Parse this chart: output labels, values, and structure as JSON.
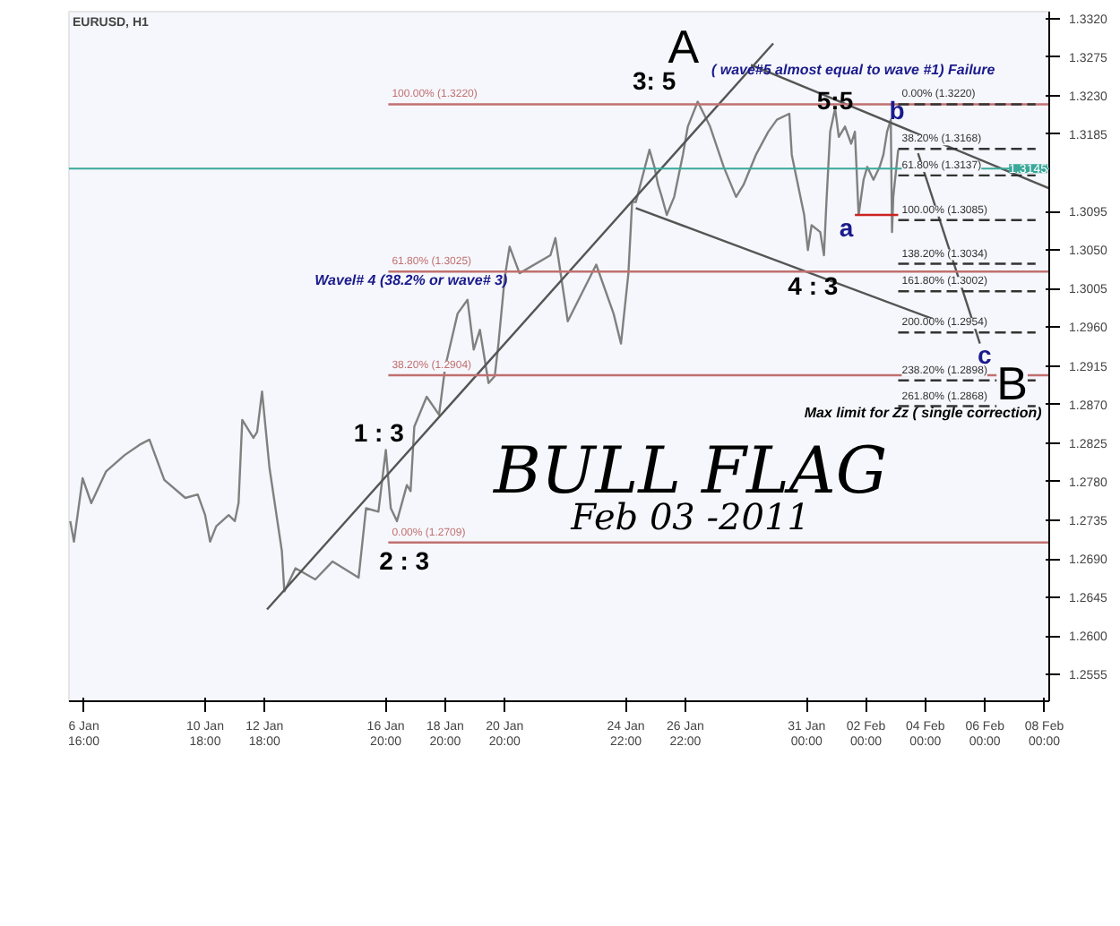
{
  "chart_data": {
    "type": "line",
    "title": "EURUSD, H1",
    "xlim": [
      "2011-01-06T04:00",
      "2011-02-08T04:00"
    ],
    "ylim": [
      1.2524,
      1.3328
    ],
    "xticks": [
      {
        "value": "2011-01-06T16:00",
        "label": "6 Jan 16:00"
      },
      {
        "value": "2011-01-10T18:00",
        "label": "10 Jan 18:00"
      },
      {
        "value": "2011-01-12T18:00",
        "label": "12 Jan 18:00"
      },
      {
        "value": "2011-01-16T20:00",
        "label": "16 Jan 20:00"
      },
      {
        "value": "2011-01-18T20:00",
        "label": "18 Jan 20:00"
      },
      {
        "value": "2011-01-20T20:00",
        "label": "20 Jan 20:00"
      },
      {
        "value": "2011-01-24T22:00",
        "label": "24 Jan 22:00"
      },
      {
        "value": "2011-01-26T22:00",
        "label": "26 Jan 22:00"
      },
      {
        "value": "2011-01-31T00:00",
        "label": "31 Jan 00:00"
      },
      {
        "value": "2011-02-02T00:00",
        "label": "02 Feb 00:00"
      },
      {
        "value": "2011-02-04T00:00",
        "label": "04 Feb 00:00"
      },
      {
        "value": "2011-02-06T00:00",
        "label": "06 Feb 00:00"
      },
      {
        "value": "2011-02-08T00:00",
        "label": "08 Feb 00:00"
      }
    ],
    "yticks": [
      {
        "value": 1.332,
        "label": "1.3320"
      },
      1.3275,
      {
        "value": 1.323,
        "label": "1.3230"
      },
      1.3185,
      1.3095,
      {
        "value": 1.305,
        "label": "1.3050"
      },
      1.3005,
      {
        "value": 1.296,
        "label": "1.2960"
      },
      1.2915,
      {
        "value": 1.287,
        "label": "1.2870"
      },
      1.2825,
      {
        "value": 1.278,
        "label": "1.2780"
      },
      1.2735,
      {
        "value": 1.269,
        "label": "1.2690"
      },
      1.2645,
      {
        "value": 1.26,
        "label": "1.2600"
      },
      1.2555
    ],
    "grid": false,
    "ref_lines": [
      {
        "axis": "y",
        "value": 1.3145,
        "label": "1.3145",
        "color": "#3aa89a"
      }
    ],
    "series": [
      {
        "color": "#808080",
        "x": [
          "2011-01-06T05:00",
          "2011-01-06T08:00",
          "2011-01-06T15:00",
          "2011-01-06T22:00",
          "2011-01-07T10:00",
          "2011-01-08T01:00",
          "2011-01-08T13:00",
          "2011-01-08T21:00",
          "2011-01-09T09:00",
          "2011-01-10T02:00",
          "2011-01-10T12:00",
          "2011-01-10T18:00",
          "2011-01-10T22:00",
          "2011-01-11T03:00",
          "2011-01-11T13:00",
          "2011-01-11T18:00",
          "2011-01-11T21:00",
          "2011-01-12T00:00",
          "2011-01-12T09:00",
          "2011-01-12T12:00",
          "2011-01-12T16:00",
          "2011-01-12T22:00",
          "2011-01-13T08:00",
          "2011-01-13T10:00",
          "2011-01-13T19:00",
          "2011-01-14T11:00",
          "2011-01-15T01:00",
          "2011-01-15T22:00",
          "2011-01-16T04:00",
          "2011-01-16T14:00",
          "2011-01-16T20:00",
          "2011-01-17T00:00",
          "2011-01-17T05:00",
          "2011-01-17T13:00",
          "2011-01-17T16:00",
          "2011-01-17T19:00",
          "2011-01-18T05:00",
          "2011-01-18T15:00",
          "2011-01-18T20:00",
          "2011-01-19T06:00",
          "2011-01-19T14:00",
          "2011-01-19T19:00",
          "2011-01-20T00:00",
          "2011-01-20T07:00",
          "2011-01-20T12:00",
          "2011-01-20T15:00",
          "2011-01-20T20:00",
          "2011-01-21T00:00",
          "2011-01-21T08:00",
          "2011-01-22T09:00",
          "2011-01-22T13:00",
          "2011-01-22T23:00",
          "2011-01-23T22:00",
          "2011-01-24T12:00",
          "2011-01-24T18:00",
          "2011-01-25T00:00",
          "2011-01-25T03:00",
          "2011-01-25T06:00",
          "2011-01-25T17:00",
          "2011-01-25T21:00",
          "2011-01-26T00:00",
          "2011-01-26T03:00",
          "2011-01-26T07:00",
          "2011-01-26T13:00",
          "2011-01-26T20:00",
          "2011-01-27T00:00",
          "2011-01-27T08:00",
          "2011-01-27T18:00",
          "2011-01-28T05:00",
          "2011-01-28T15:00",
          "2011-01-28T21:00",
          "2011-01-29T07:00",
          "2011-01-29T17:00",
          "2011-01-30T00:00",
          "2011-01-30T10:00",
          "2011-01-30T12:00",
          "2011-01-30T22:00",
          "2011-01-31T01:00",
          "2011-01-31T04:00",
          "2011-01-31T11:00",
          "2011-01-31T14:00",
          "2011-01-31T16:00",
          "2011-01-31T19:00",
          "2011-01-31T23:00",
          "2011-02-01T02:00",
          "2011-02-01T07:00",
          "2011-02-01T12:00",
          "2011-02-01T15:00",
          "2011-02-01T18:00",
          "2011-02-01T22:00",
          "2011-02-02T01:00",
          "2011-02-02T06:00",
          "2011-02-02T11:00",
          "2011-02-02T14:00",
          "2011-02-02T17:00",
          "2011-02-02T20:00",
          "2011-02-02T21:00",
          "2011-02-02T22:00",
          "2011-02-03T02:00"
        ],
        "values": [
          1.2734,
          1.271,
          1.2784,
          1.2755,
          1.2792,
          1.2811,
          1.2823,
          1.2829,
          1.2782,
          1.2761,
          1.2765,
          1.2741,
          1.271,
          1.2728,
          1.2741,
          1.2734,
          1.2755,
          1.2852,
          1.2831,
          1.2838,
          1.2885,
          1.2796,
          1.2699,
          1.2652,
          1.2679,
          1.2666,
          1.2687,
          1.2668,
          1.2749,
          1.2745,
          1.2817,
          1.2749,
          1.2734,
          1.2776,
          1.2769,
          1.2844,
          1.2879,
          1.2858,
          1.2914,
          1.2976,
          1.2992,
          1.2934,
          1.2957,
          1.2895,
          1.2903,
          1.2941,
          1.3017,
          1.3054,
          1.3023,
          1.3044,
          1.3064,
          1.2967,
          1.3033,
          1.2976,
          1.2941,
          1.3023,
          1.3106,
          1.3106,
          1.3167,
          1.3147,
          1.3126,
          1.3112,
          1.3091,
          1.3112,
          1.3161,
          1.3194,
          1.3223,
          1.3194,
          1.3147,
          1.3112,
          1.3126,
          1.3161,
          1.3188,
          1.3202,
          1.3209,
          1.3161,
          1.3091,
          1.305,
          1.3079,
          1.3071,
          1.3044,
          1.3106,
          1.3188,
          1.3215,
          1.3182,
          1.3194,
          1.3174,
          1.3188,
          1.3091,
          1.3132,
          1.3147,
          1.3132,
          1.3147,
          1.3161,
          1.3188,
          1.3202,
          1.3071,
          1.3112,
          1.3167
        ]
      },
      {
        "color": "#555555",
        "x": [
          "2011-01-12T20:00",
          "2011-01-29T21:00"
        ],
        "values": [
          1.2631,
          1.3291
        ]
      },
      {
        "color": "#555555",
        "x": [
          "2011-01-29T03:00",
          "2011-02-08T04:00"
        ],
        "values": [
          1.3266,
          1.3122
        ]
      },
      {
        "color": "#555555",
        "x": [
          "2011-01-25T06:00",
          "2011-02-05T02:00"
        ],
        "values": [
          1.3099,
          1.2959
        ]
      },
      {
        "color": "#555555",
        "x": [
          "2011-02-03T18:00",
          "2011-02-05T20:00"
        ],
        "values": [
          1.3163,
          1.2941
        ]
      },
      {
        "color": "#cc2222",
        "x": [
          "2011-02-01T15:00",
          "2011-02-03T02:00"
        ],
        "values": [
          1.3091,
          1.3091
        ]
      },
      {
        "name": "100.00% (1.3220)",
        "color": "#c07070",
        "x": [
          "2011-01-16T22:00",
          "2011-02-08T04:00"
        ],
        "values": [
          1.322,
          1.322
        ]
      },
      {
        "name": "61.80% (1.3025)",
        "color": "#c07070",
        "x": [
          "2011-01-16T22:00",
          "2011-02-08T04:00"
        ],
        "values": [
          1.3025,
          1.3025
        ]
      },
      {
        "name": "38.20% (1.2904)",
        "color": "#c07070",
        "x": [
          "2011-01-16T22:00",
          "2011-02-08T04:00"
        ],
        "values": [
          1.2904,
          1.2904
        ]
      },
      {
        "name": "0.00% (1.2709)",
        "color": "#c07070",
        "x": [
          "2011-01-16T22:00",
          "2011-02-08T04:00"
        ],
        "values": [
          1.2709,
          1.2709
        ]
      },
      {
        "name": "0.00% (1.3220)",
        "color": "#333333",
        "line_style": "dashed",
        "x": [
          "2011-02-03T02:00",
          "2011-02-07T17:00"
        ],
        "values": [
          1.322,
          1.322
        ]
      },
      {
        "name": "38.20% (1.3168)",
        "color": "#333333",
        "line_style": "dashed",
        "x": [
          "2011-02-03T02:00",
          "2011-02-07T17:00"
        ],
        "values": [
          1.3168,
          1.3168
        ]
      },
      {
        "name": "61.80% (1.3137)",
        "color": "#333333",
        "line_style": "dashed",
        "x": [
          "2011-02-03T02:00",
          "2011-02-07T17:00"
        ],
        "values": [
          1.3137,
          1.3137
        ]
      },
      {
        "name": "100.00% (1.3085)",
        "color": "#333333",
        "line_style": "dashed",
        "x": [
          "2011-02-03T02:00",
          "2011-02-07T17:00"
        ],
        "values": [
          1.3085,
          1.3085
        ]
      },
      {
        "name": "138.20% (1.3034)",
        "color": "#333333",
        "line_style": "dashed",
        "x": [
          "2011-02-03T02:00",
          "2011-02-07T17:00"
        ],
        "values": [
          1.3034,
          1.3034
        ]
      },
      {
        "name": "161.80% (1.3002)",
        "color": "#333333",
        "line_style": "dashed",
        "x": [
          "2011-02-03T02:00",
          "2011-02-07T17:00"
        ],
        "values": [
          1.3002,
          1.3002
        ]
      },
      {
        "name": "200.00% (1.2954)",
        "color": "#333333",
        "line_style": "dashed",
        "x": [
          "2011-02-03T02:00",
          "2011-02-07T17:00"
        ],
        "values": [
          1.2954,
          1.2954
        ]
      },
      {
        "name": "238.20% (1.2898)",
        "color": "#333333",
        "line_style": "dashed",
        "x": [
          "2011-02-03T02:00",
          "2011-02-07T17:00"
        ],
        "values": [
          1.2898,
          1.2898
        ]
      },
      {
        "name": "261.80% (1.2868)",
        "color": "#333333",
        "line_style": "dashed",
        "x": [
          "2011-02-03T02:00",
          "2011-02-07T17:00"
        ],
        "values": [
          1.2868,
          1.2868
        ]
      }
    ],
    "annotations": [
      "A",
      {
        "text": "B",
        "x": "2011-02-06T22:00",
        "y": 1.2895
      },
      "3: 5",
      {
        "text": "5:5",
        "x": "2011-01-31T23:00",
        "y": 1.3225
      },
      "4 : 3",
      "1 : 3",
      "2 : 3",
      "a",
      {
        "text": "b",
        "x": "2011-02-03T01:00",
        "y": 1.3213
      },
      "c",
      "( wave#5 almost equal to wave #1) Failure",
      "Wavel# 4  (38.2% or wave# 3)",
      {
        "text": "Max limit for Zz ( single correction)",
        "x": "2011-02-03T22:00",
        "y": 1.286
      },
      "BULL FLAG",
      "Feb 03 -2011"
    ]
  }
}
